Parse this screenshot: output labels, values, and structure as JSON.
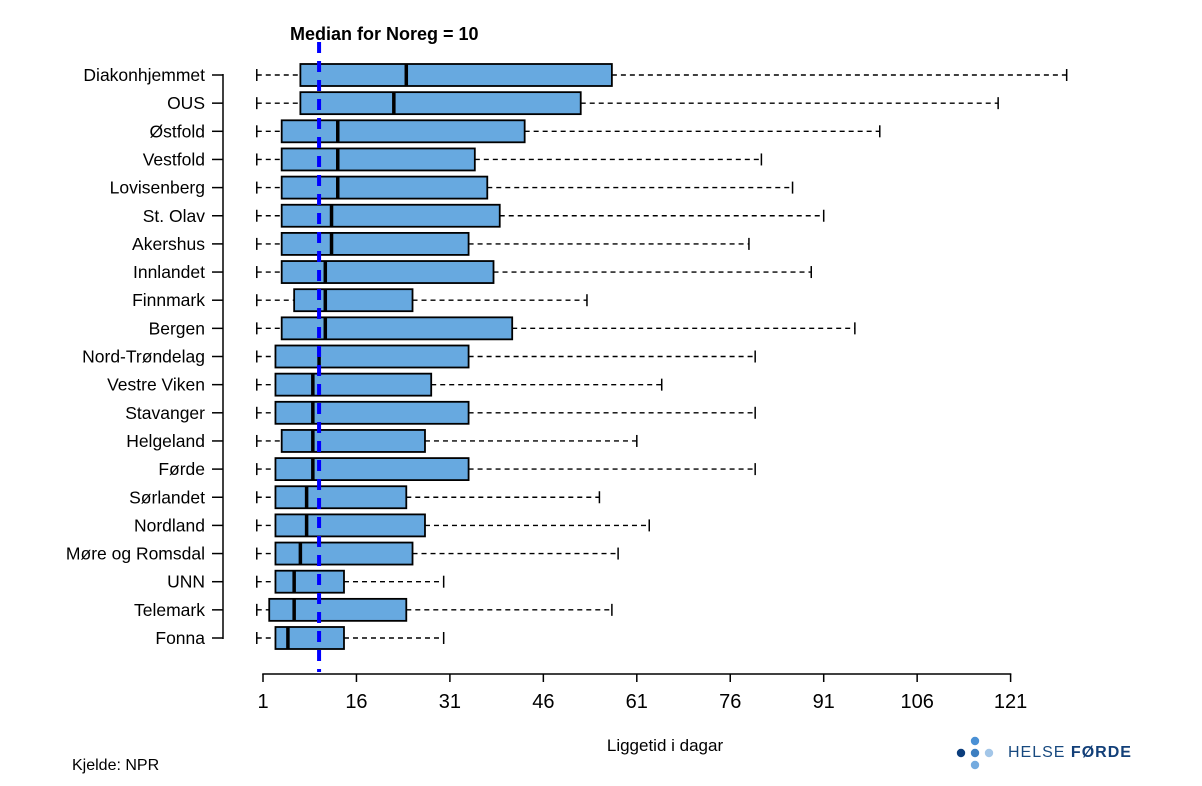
{
  "footer": {
    "source": "Kjelde: NPR"
  },
  "logo": {
    "text_regular": "HELSE",
    "text_bold": "FØRDE",
    "dot_colors": {
      "left": "#0b3d7c",
      "top": "#4a90d5",
      "center": "#3d7fc1",
      "right": "#a3c6e8",
      "bottom": "#74abdf"
    }
  },
  "chart_data": {
    "type": "boxplot",
    "orientation": "horizontal",
    "title": "Median for Noreg = 10",
    "xlabel": "Liggetid i dagar",
    "x_ticks": [
      1,
      16,
      31,
      46,
      61,
      76,
      91,
      106,
      121
    ],
    "xlim": [
      0,
      131
    ],
    "grid": false,
    "box_fill": "#67a9e0",
    "box_stroke": "#000000",
    "reference_line": {
      "value": 10,
      "label": "Median for Noreg = 10",
      "color": "#0000ff",
      "style": "dashed"
    },
    "rows": [
      {
        "name": "Diakonhjemmet",
        "min": 0,
        "q1": 7,
        "median": 24,
        "q3": 57,
        "max": 130
      },
      {
        "name": "OUS",
        "min": 0,
        "q1": 7,
        "median": 22,
        "q3": 52,
        "max": 119
      },
      {
        "name": "Østfold",
        "min": 0,
        "q1": 4,
        "median": 13,
        "q3": 43,
        "max": 100
      },
      {
        "name": "Vestfold",
        "min": 0,
        "q1": 4,
        "median": 13,
        "q3": 35,
        "max": 81
      },
      {
        "name": "Lovisenberg",
        "min": 0,
        "q1": 4,
        "median": 13,
        "q3": 37,
        "max": 86
      },
      {
        "name": "St. Olav",
        "min": 0,
        "q1": 4,
        "median": 12,
        "q3": 39,
        "max": 91
      },
      {
        "name": "Akershus",
        "min": 0,
        "q1": 4,
        "median": 12,
        "q3": 34,
        "max": 79
      },
      {
        "name": "Innlandet",
        "min": 0,
        "q1": 4,
        "median": 11,
        "q3": 38,
        "max": 89
      },
      {
        "name": "Finnmark",
        "min": 0,
        "q1": 6,
        "median": 11,
        "q3": 25,
        "max": 53
      },
      {
        "name": "Bergen",
        "min": 0,
        "q1": 4,
        "median": 11,
        "q3": 41,
        "max": 96
      },
      {
        "name": "Nord-Trøndelag",
        "min": 0,
        "q1": 3,
        "median": 10,
        "q3": 34,
        "max": 80
      },
      {
        "name": "Vestre Viken",
        "min": 0,
        "q1": 3,
        "median": 9,
        "q3": 28,
        "max": 65
      },
      {
        "name": "Stavanger",
        "min": 0,
        "q1": 3,
        "median": 9,
        "q3": 34,
        "max": 80
      },
      {
        "name": "Helgeland",
        "min": 0,
        "q1": 4,
        "median": 9,
        "q3": 27,
        "max": 61
      },
      {
        "name": "Førde",
        "min": 0,
        "q1": 3,
        "median": 9,
        "q3": 34,
        "max": 80
      },
      {
        "name": "Sørlandet",
        "min": 0,
        "q1": 3,
        "median": 8,
        "q3": 24,
        "max": 55
      },
      {
        "name": "Nordland",
        "min": 0,
        "q1": 3,
        "median": 8,
        "q3": 27,
        "max": 63
      },
      {
        "name": "Møre og Romsdal",
        "min": 0,
        "q1": 3,
        "median": 7,
        "q3": 25,
        "max": 58
      },
      {
        "name": "UNN",
        "min": 0,
        "q1": 3,
        "median": 6,
        "q3": 14,
        "max": 30
      },
      {
        "name": "Telemark",
        "min": 0,
        "q1": 2,
        "median": 6,
        "q3": 24,
        "max": 57
      },
      {
        "name": "Fonna",
        "min": 0,
        "q1": 3,
        "median": 5,
        "q3": 14,
        "max": 30
      }
    ]
  }
}
